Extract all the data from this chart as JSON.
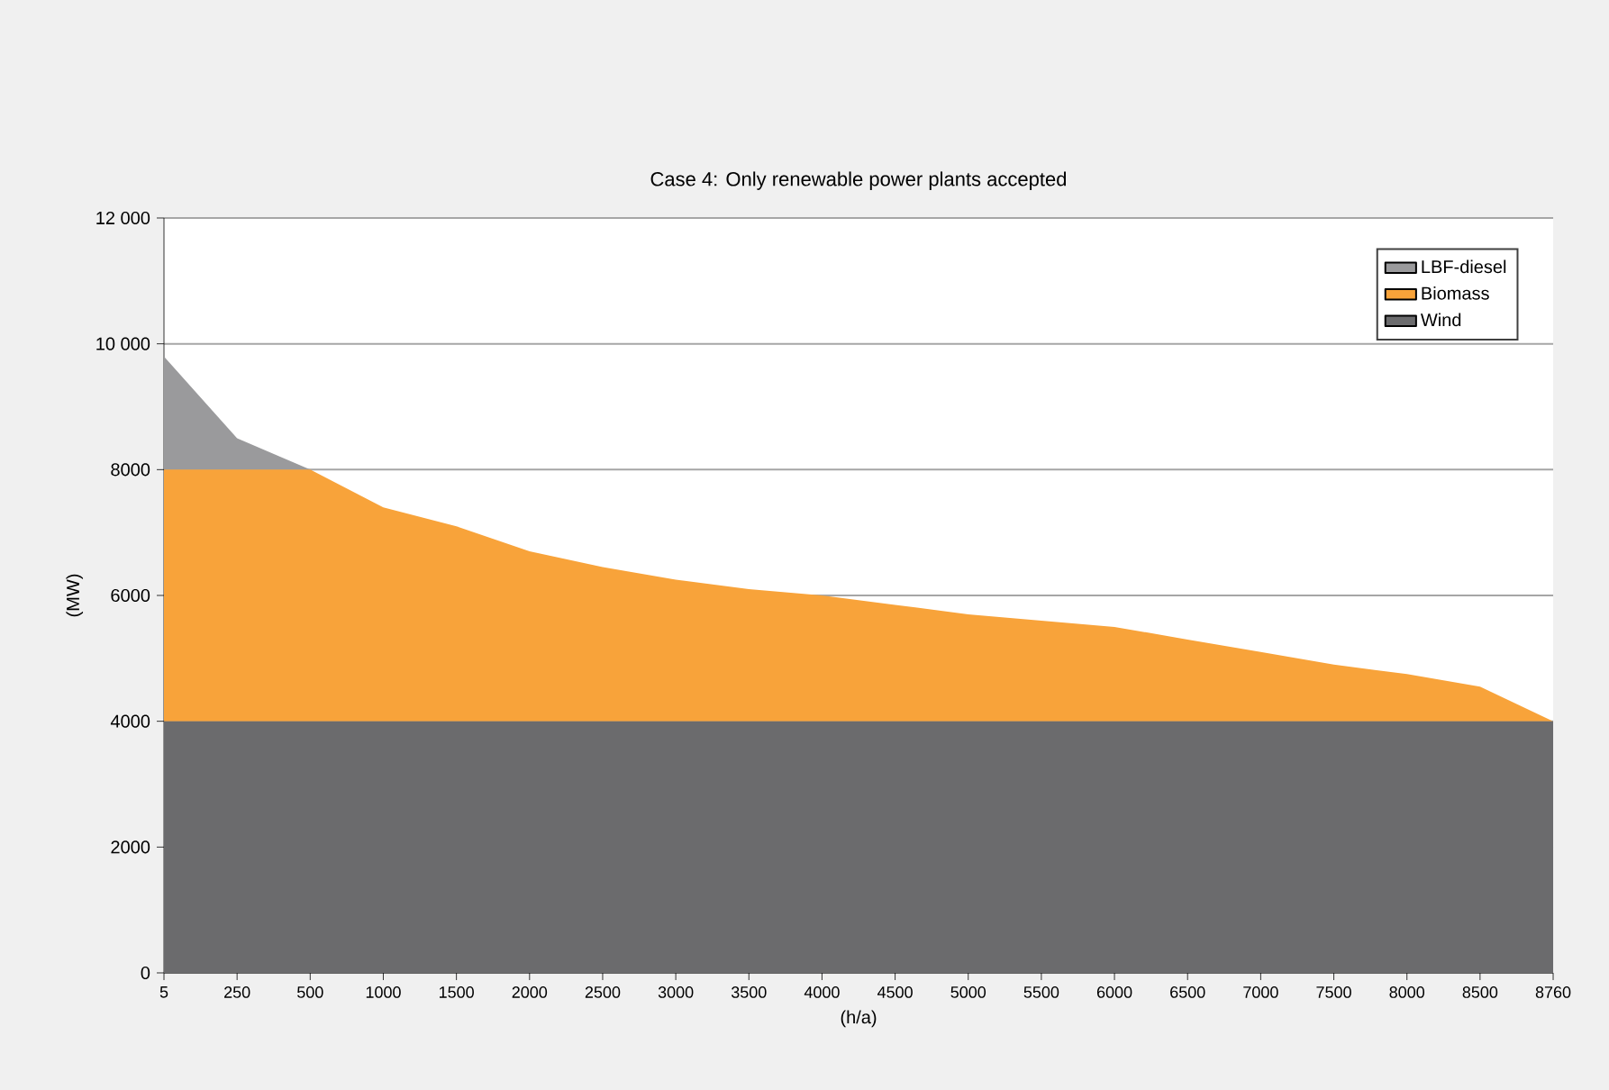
{
  "chart_data": {
    "type": "area",
    "stacked": true,
    "title": "Case 4: Only renewable power plants accepted",
    "xlabel": "(h/a)",
    "ylabel": "(MW)",
    "categories": [
      "5",
      "250",
      "500",
      "1000",
      "1500",
      "2000",
      "2500",
      "3000",
      "3500",
      "4000",
      "4500",
      "5000",
      "5500",
      "6000",
      "6500",
      "7000",
      "7500",
      "8000",
      "8500",
      "8760"
    ],
    "series": [
      {
        "name": "Wind",
        "color": "#6b6b6d",
        "values": [
          4000,
          4000,
          4000,
          4000,
          4000,
          4000,
          4000,
          4000,
          4000,
          4000,
          4000,
          4000,
          4000,
          4000,
          4000,
          4000,
          4000,
          4000,
          4000,
          4000
        ]
      },
      {
        "name": "Biomass",
        "color": "#f8a33a",
        "values": [
          4000,
          4000,
          4000,
          3400,
          3100,
          2700,
          2450,
          2250,
          2100,
          2000,
          1850,
          1700,
          1600,
          1500,
          1300,
          1100,
          900,
          750,
          550,
          0
        ]
      },
      {
        "name": "LBF-diesel",
        "color": "#9a9a9c",
        "values": [
          1800,
          500,
          0,
          0,
          0,
          0,
          0,
          0,
          0,
          0,
          0,
          0,
          0,
          0,
          0,
          0,
          0,
          0,
          0,
          0
        ]
      }
    ],
    "ylim": [
      0,
      12000
    ],
    "yticks": [
      0,
      2000,
      4000,
      6000,
      8000,
      {
        "value": 10000,
        "label": "10 000"
      },
      {
        "value": 12000,
        "label": "12 000"
      }
    ],
    "grid": "y",
    "legend": "top right"
  }
}
